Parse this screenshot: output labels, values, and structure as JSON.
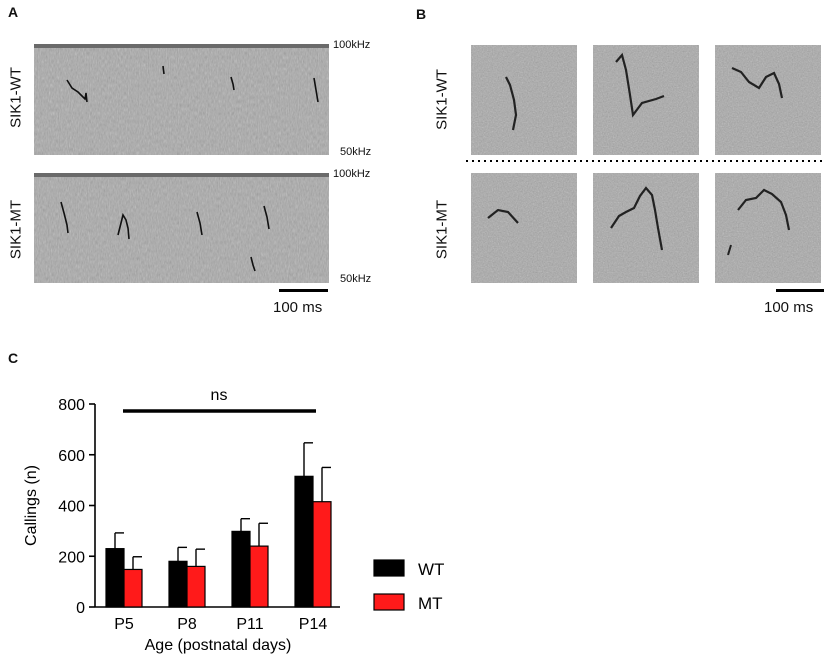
{
  "panels": {
    "a": {
      "letter": "A",
      "rows": [
        {
          "label": "SIK1-WT",
          "freq_top": "100kHz",
          "freq_bottom": "50kHz"
        },
        {
          "label": "SIK1-MT",
          "freq_top": "100kHz",
          "freq_bottom": "50kHz"
        }
      ],
      "scale_label": "100 ms"
    },
    "b": {
      "letter": "B",
      "rows": [
        {
          "label": "SIK1-WT"
        },
        {
          "label": "SIK1-MT"
        }
      ],
      "scale_label": "100 ms"
    },
    "c": {
      "letter": "C"
    }
  },
  "colors": {
    "wt": "#000000",
    "mt": "#ff1a1a",
    "spectrogram": "#a8a8a8"
  },
  "chart_data": {
    "type": "bar",
    "categories": [
      "P5",
      "P8",
      "P11",
      "P14"
    ],
    "series": [
      {
        "name": "WT",
        "values": [
          230,
          180,
          298,
          515
        ],
        "errors": [
          62,
          55,
          50,
          132
        ]
      },
      {
        "name": "MT",
        "values": [
          148,
          160,
          240,
          415
        ],
        "errors": [
          50,
          68,
          90,
          135
        ]
      }
    ],
    "xlabel": "Age (postnatal days)",
    "ylabel": "Callings (n)",
    "ylim": [
      0,
      800
    ],
    "yticks": [
      0,
      200,
      400,
      600,
      800
    ],
    "annotation": "ns",
    "legend_position": "right"
  }
}
